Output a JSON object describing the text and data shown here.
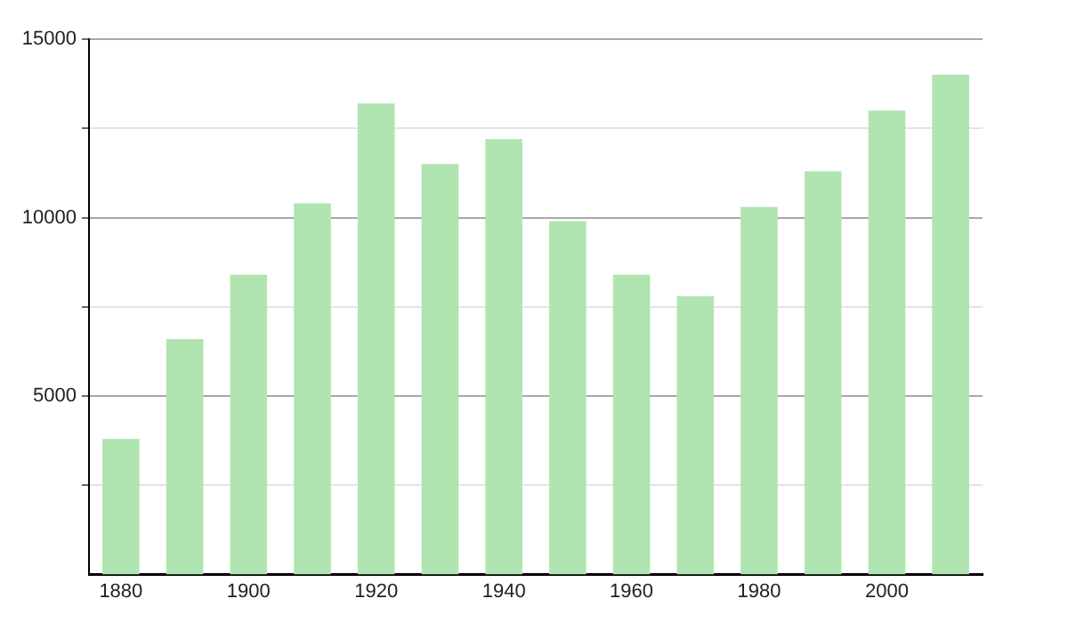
{
  "chart_data": {
    "type": "bar",
    "categories": [
      "1880",
      null,
      "1900",
      null,
      "1920",
      null,
      "1940",
      null,
      "1960",
      null,
      "1980",
      null,
      "2000",
      null
    ],
    "values": [
      3800,
      6600,
      8400,
      10400,
      13200,
      11500,
      12200,
      9900,
      8400,
      7800,
      10300,
      11300,
      13000,
      14000
    ],
    "color": "#b0e4b0",
    "ylim": [
      0,
      15000
    ],
    "yticks": [
      {
        "value": 2500,
        "label": null
      },
      5000,
      {
        "value": 7500,
        "label": null
      },
      10000,
      {
        "value": 12500,
        "label": null
      },
      15000
    ],
    "grid": "y",
    "legend": false
  }
}
